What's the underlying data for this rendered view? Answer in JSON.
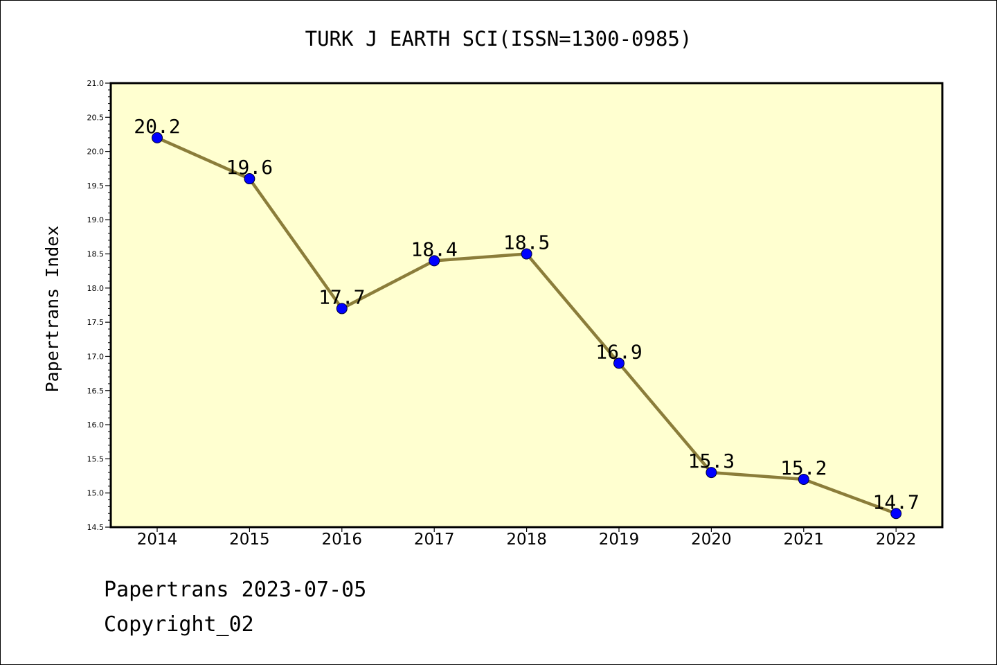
{
  "chart_data": {
    "type": "line",
    "title": "TURK J EARTH SCI(ISSN=1300-0985)",
    "xlabel": "",
    "ylabel": "Papertrans Index",
    "categories": [
      "2014",
      "2015",
      "2016",
      "2017",
      "2018",
      "2019",
      "2020",
      "2021",
      "2022"
    ],
    "series": [
      {
        "values": [
          20.2,
          19.6,
          17.7,
          18.4,
          18.5,
          16.9,
          15.3,
          15.2,
          14.7
        ],
        "data_labels": [
          "20.2",
          "19.6",
          "17.7",
          "18.4",
          "18.5",
          "16.9",
          "15.3",
          "15.2",
          "14.7"
        ],
        "line_color": "#8b7d3a",
        "marker_color": "#0000ff"
      }
    ],
    "ylim": [
      14.5,
      21.0
    ],
    "yticks": [
      "14.5",
      "15.0",
      "15.5",
      "16.0",
      "16.5",
      "17.0",
      "17.5",
      "18.0",
      "18.5",
      "19.0",
      "19.5",
      "20.0",
      "20.5",
      "21.0"
    ],
    "plot_background": "#ffffd0",
    "grid": false,
    "legend": "none"
  },
  "footer": {
    "line1": "Papertrans 2023-07-05",
    "line2": "Copyright_02"
  }
}
